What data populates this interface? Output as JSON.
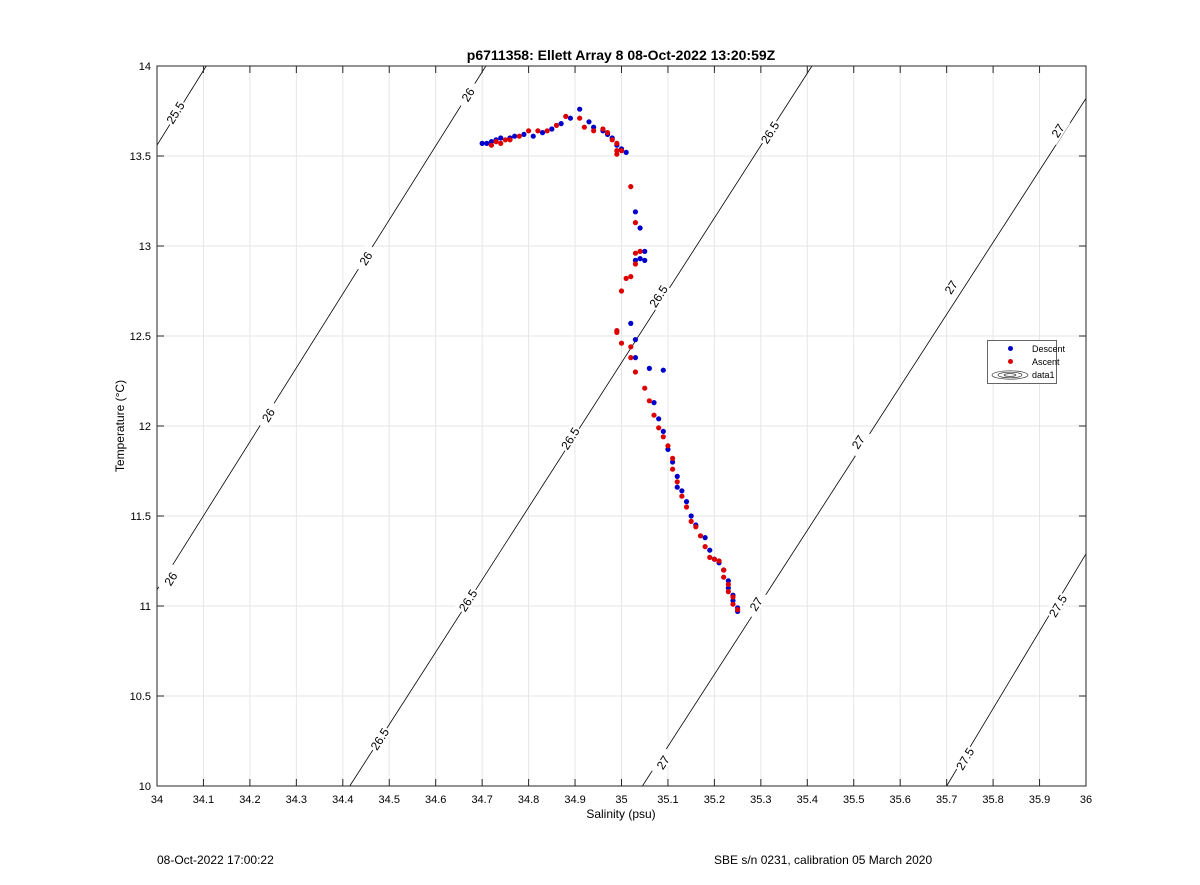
{
  "chart_data": {
    "type": "scatter",
    "title": "p6711358: Ellett Array 8 08-Oct-2022 13:20:59Z",
    "xlabel": "Salinity (psu)",
    "ylabel": "Temperature (°C)",
    "xlim": [
      34,
      36
    ],
    "ylim": [
      10,
      14
    ],
    "xticks": [
      "34",
      "34.1",
      "34.2",
      "34.3",
      "34.4",
      "34.5",
      "34.6",
      "34.7",
      "34.8",
      "34.9",
      "35",
      "35.1",
      "35.2",
      "35.3",
      "35.4",
      "35.5",
      "35.6",
      "35.7",
      "35.8",
      "35.9",
      "36"
    ],
    "yticks": [
      "10",
      "10.5",
      "11",
      "11.5",
      "12",
      "12.5",
      "13",
      "13.5",
      "14"
    ],
    "grid": true,
    "legend_position": "right",
    "contours": [
      {
        "label": "25.5",
        "points": [
          [
            34.0,
            13.56
          ],
          [
            34.106,
            14.0
          ]
        ]
      },
      {
        "label": "26",
        "points": [
          [
            34.0,
            11.09
          ],
          [
            34.708,
            14.0
          ]
        ]
      },
      {
        "label": "26.5",
        "points": [
          [
            34.415,
            10.0
          ],
          [
            35.41,
            14.0
          ]
        ]
      },
      {
        "label": "27",
        "points": [
          [
            35.045,
            10.0
          ],
          [
            36.0,
            13.82
          ]
        ]
      },
      {
        "label": "27.5",
        "points": [
          [
            35.7,
            10.0
          ],
          [
            36.0,
            11.29
          ]
        ]
      }
    ],
    "contour_labels": [
      {
        "text": "25.5",
        "s": 34.04,
        "t": 13.74
      },
      {
        "text": "26",
        "s": 34.67,
        "t": 13.84
      },
      {
        "text": "26",
        "s": 34.45,
        "t": 12.93
      },
      {
        "text": "26",
        "s": 34.24,
        "t": 12.06
      },
      {
        "text": "26",
        "s": 34.03,
        "t": 11.15
      },
      {
        "text": "26.5",
        "s": 34.48,
        "t": 10.26
      },
      {
        "text": "26.5",
        "s": 34.67,
        "t": 11.03
      },
      {
        "text": "26.5",
        "s": 34.89,
        "t": 11.93
      },
      {
        "text": "26.5",
        "s": 35.08,
        "t": 12.72
      },
      {
        "text": "26.5",
        "s": 35.32,
        "t": 13.63
      },
      {
        "text": "27",
        "s": 35.09,
        "t": 10.13
      },
      {
        "text": "27",
        "s": 35.29,
        "t": 11.01
      },
      {
        "text": "27",
        "s": 35.51,
        "t": 11.91
      },
      {
        "text": "27",
        "s": 35.71,
        "t": 12.77
      },
      {
        "text": "27",
        "s": 35.94,
        "t": 13.64
      },
      {
        "text": "27.5",
        "s": 35.74,
        "t": 10.15
      },
      {
        "text": "27.5",
        "s": 35.94,
        "t": 11.0
      }
    ],
    "series": [
      {
        "name": "Descent",
        "color": "#0000cc",
        "points": [
          [
            34.7,
            13.57
          ],
          [
            34.71,
            13.57
          ],
          [
            34.72,
            13.58
          ],
          [
            34.73,
            13.59
          ],
          [
            34.74,
            13.6
          ],
          [
            34.76,
            13.6
          ],
          [
            34.77,
            13.61
          ],
          [
            34.79,
            13.62
          ],
          [
            34.81,
            13.61
          ],
          [
            34.83,
            13.63
          ],
          [
            34.85,
            13.65
          ],
          [
            34.87,
            13.68
          ],
          [
            34.89,
            13.71
          ],
          [
            34.91,
            13.76
          ],
          [
            34.93,
            13.69
          ],
          [
            34.94,
            13.66
          ],
          [
            34.96,
            13.64
          ],
          [
            34.97,
            13.62
          ],
          [
            34.98,
            13.6
          ],
          [
            34.99,
            13.56
          ],
          [
            35.0,
            13.54
          ],
          [
            35.01,
            13.52
          ],
          [
            35.03,
            13.19
          ],
          [
            35.04,
            13.1
          ],
          [
            35.05,
            12.97
          ],
          [
            35.04,
            12.93
          ],
          [
            35.05,
            12.92
          ],
          [
            35.03,
            12.92
          ],
          [
            35.02,
            12.57
          ],
          [
            35.03,
            12.48
          ],
          [
            35.03,
            12.38
          ],
          [
            35.09,
            12.31
          ],
          [
            35.06,
            12.32
          ],
          [
            35.07,
            12.13
          ],
          [
            35.08,
            12.04
          ],
          [
            35.09,
            11.97
          ],
          [
            35.1,
            11.87
          ],
          [
            35.11,
            11.8
          ],
          [
            35.12,
            11.72
          ],
          [
            35.12,
            11.66
          ],
          [
            35.13,
            11.64
          ],
          [
            35.14,
            11.58
          ],
          [
            35.15,
            11.5
          ],
          [
            35.16,
            11.45
          ],
          [
            35.18,
            11.38
          ],
          [
            35.19,
            11.31
          ],
          [
            35.2,
            11.26
          ],
          [
            35.21,
            11.24
          ],
          [
            35.22,
            11.2
          ],
          [
            35.23,
            11.14
          ],
          [
            35.23,
            11.1
          ],
          [
            35.24,
            11.06
          ],
          [
            35.24,
            11.03
          ],
          [
            35.25,
            10.99
          ],
          [
            35.25,
            10.97
          ]
        ]
      },
      {
        "name": "Ascent",
        "color": "#dd0000",
        "points": [
          [
            34.72,
            13.56
          ],
          [
            34.73,
            13.58
          ],
          [
            34.74,
            13.57
          ],
          [
            34.75,
            13.59
          ],
          [
            34.76,
            13.59
          ],
          [
            34.78,
            13.61
          ],
          [
            34.8,
            13.64
          ],
          [
            34.82,
            13.64
          ],
          [
            34.84,
            13.64
          ],
          [
            34.86,
            13.67
          ],
          [
            34.88,
            13.72
          ],
          [
            34.91,
            13.71
          ],
          [
            34.92,
            13.66
          ],
          [
            34.94,
            13.64
          ],
          [
            34.96,
            13.65
          ],
          [
            34.97,
            13.63
          ],
          [
            34.98,
            13.59
          ],
          [
            34.99,
            13.57
          ],
          [
            34.99,
            13.53
          ],
          [
            34.99,
            13.51
          ],
          [
            35.0,
            13.53
          ],
          [
            35.02,
            13.33
          ],
          [
            35.03,
            13.13
          ],
          [
            35.03,
            12.96
          ],
          [
            35.04,
            12.97
          ],
          [
            35.03,
            12.9
          ],
          [
            35.02,
            12.83
          ],
          [
            35.01,
            12.82
          ],
          [
            35.0,
            12.75
          ],
          [
            34.99,
            12.53
          ],
          [
            34.99,
            12.52
          ],
          [
            35.0,
            12.46
          ],
          [
            35.02,
            12.44
          ],
          [
            35.02,
            12.38
          ],
          [
            35.03,
            12.3
          ],
          [
            35.05,
            12.21
          ],
          [
            35.06,
            12.14
          ],
          [
            35.07,
            12.06
          ],
          [
            35.08,
            11.99
          ],
          [
            35.09,
            11.94
          ],
          [
            35.1,
            11.89
          ],
          [
            35.11,
            11.82
          ],
          [
            35.11,
            11.76
          ],
          [
            35.12,
            11.69
          ],
          [
            35.13,
            11.61
          ],
          [
            35.14,
            11.55
          ],
          [
            35.15,
            11.47
          ],
          [
            35.16,
            11.44
          ],
          [
            35.17,
            11.39
          ],
          [
            35.18,
            11.33
          ],
          [
            35.19,
            11.27
          ],
          [
            35.2,
            11.26
          ],
          [
            35.21,
            11.25
          ],
          [
            35.22,
            11.2
          ],
          [
            35.22,
            11.16
          ],
          [
            35.23,
            11.12
          ],
          [
            35.23,
            11.08
          ],
          [
            35.24,
            11.05
          ],
          [
            35.24,
            11.01
          ],
          [
            35.25,
            10.98
          ]
        ]
      }
    ],
    "legend": {
      "entries": [
        {
          "label": "Descent",
          "color": "#0000cc"
        },
        {
          "label": "Ascent",
          "color": "#dd0000"
        },
        {
          "label": "data1"
        }
      ]
    }
  },
  "footer": {
    "left": "08-Oct-2022 17:00:22",
    "right": "SBE s/n 0231, calibration 05 March 2020"
  }
}
